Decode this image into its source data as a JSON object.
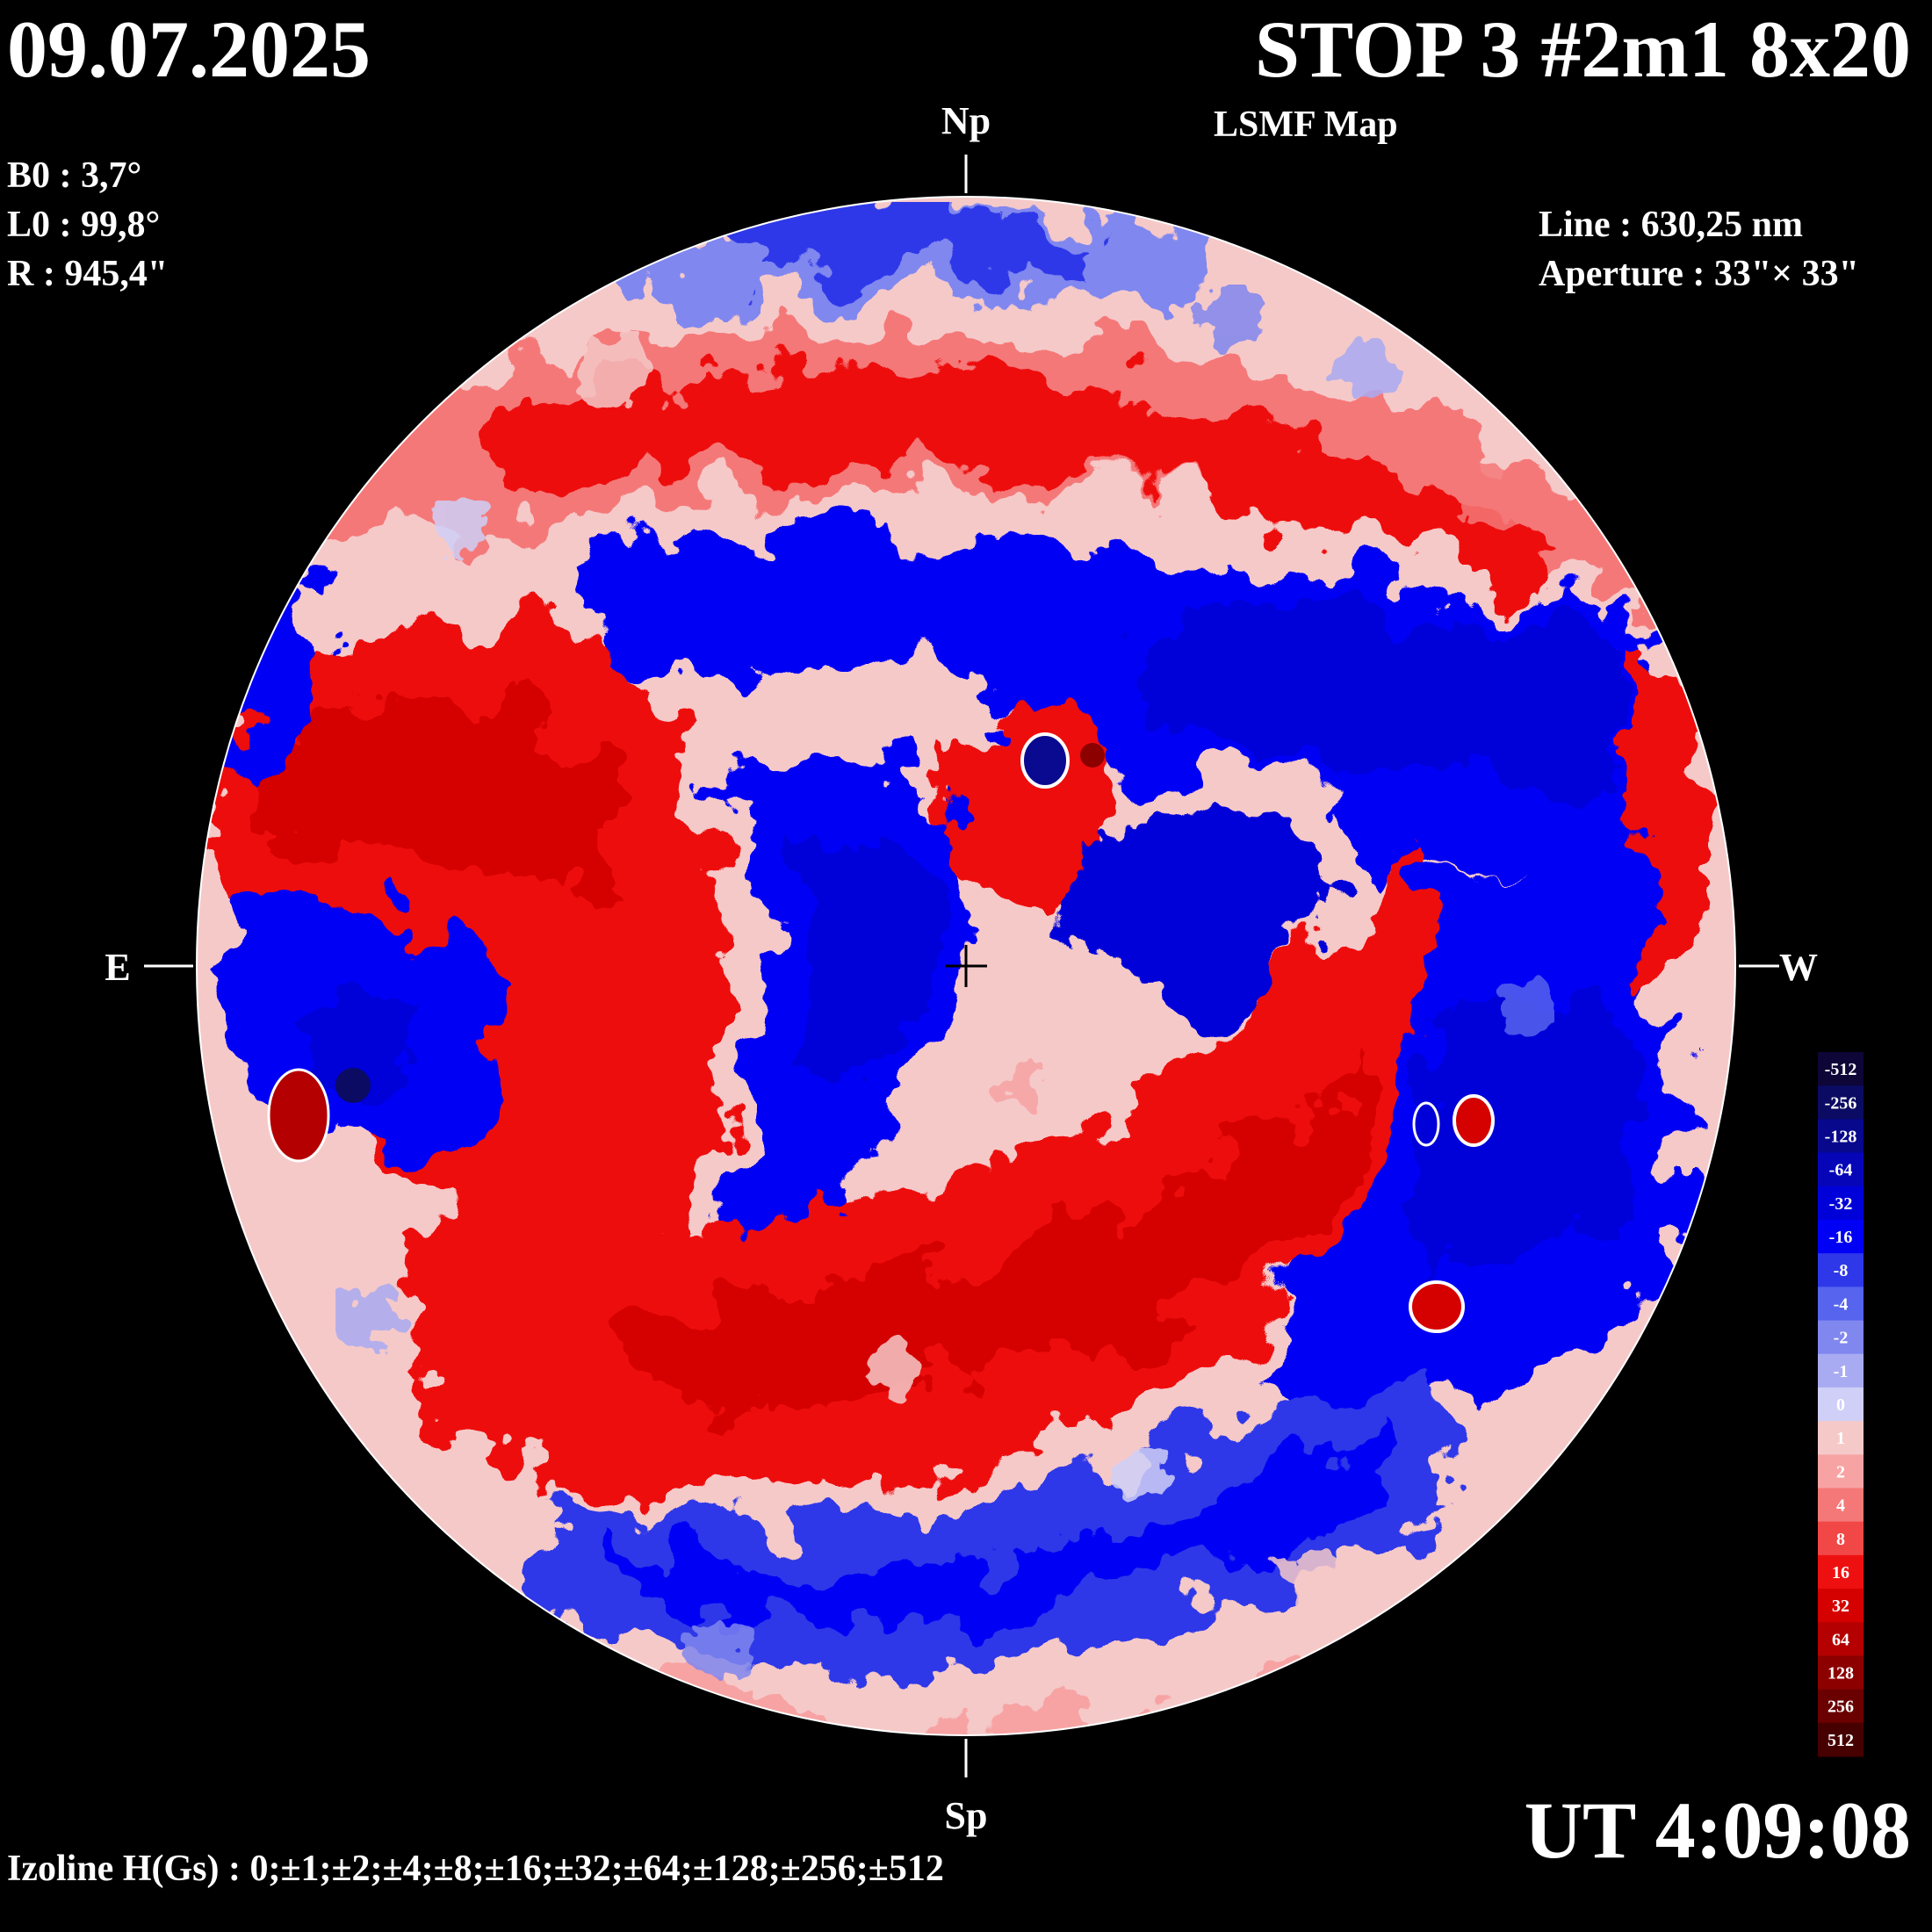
{
  "header": {
    "date": "09.07.2025",
    "title": "STOP 3 #2m1 8x20",
    "subtitle": "LSMF  Map"
  },
  "params": {
    "b0": "B0 : 3,7°",
    "l0": "L0 : 99,8°",
    "r": "R  : 945,4\""
  },
  "instrument": {
    "line": "Line :  630,25 nm",
    "aperture": "Aperture : 33\"× 33\""
  },
  "time": "UT 4:09:08",
  "izoline": "Izoline H(Gs) : 0;±1;±2;±4;±8;±16;±32;±64;±128;±256;±512",
  "directions": {
    "north": "Np",
    "south": "Sp",
    "east": "E",
    "west": "W"
  },
  "legend": {
    "labels": [
      "-512",
      "-256",
      "-128",
      "-64",
      "-32",
      "-16",
      "-8",
      "-4",
      "-2",
      "-1",
      "0",
      "1",
      "2",
      "4",
      "8",
      "16",
      "32",
      "64",
      "128",
      "256",
      "512"
    ],
    "colors": [
      "#0d0636",
      "#0b0b63",
      "#08088d",
      "#0606b8",
      "#0000d8",
      "#0000f5",
      "#2e38e8",
      "#5664ee",
      "#8087ef",
      "#a9abf2",
      "#cfcff7",
      "#f6c9c9",
      "#f7a3a3",
      "#f57878",
      "#f24747",
      "#ee1010",
      "#d50000",
      "#b40000",
      "#8d0000",
      "#6a0000",
      "#460000"
    ]
  },
  "colors": {
    "positive": "#e60000",
    "negative": "#0000cc",
    "neutral_pos": "#f6c9c9",
    "neutral_neg": "#cfcff7",
    "contour": "#ffffff"
  }
}
